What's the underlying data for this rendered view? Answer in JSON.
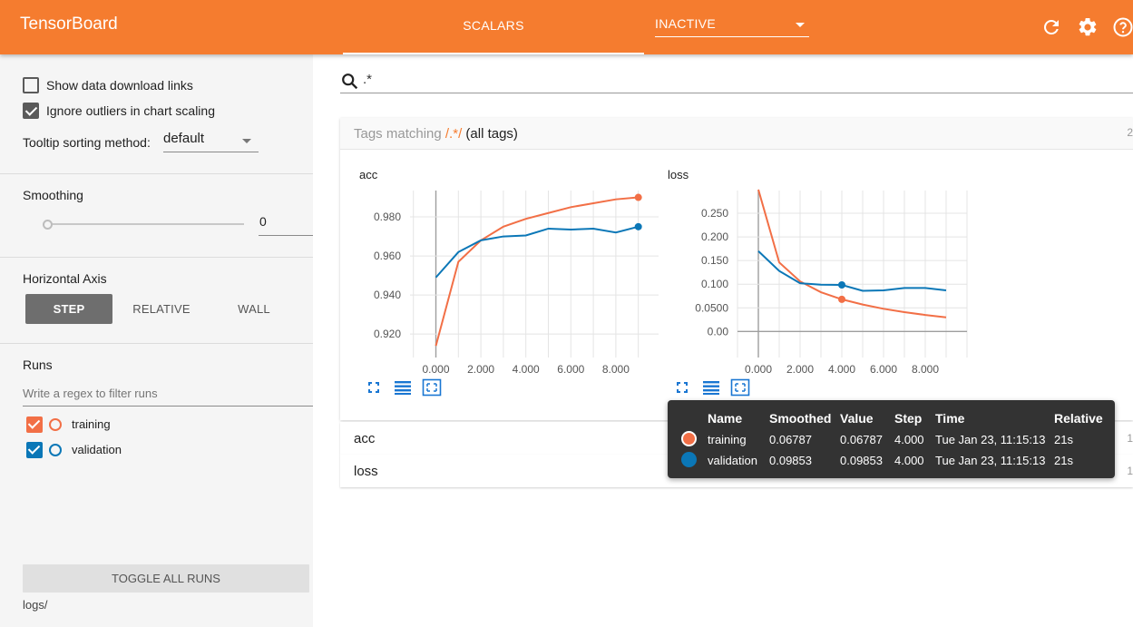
{
  "app": {
    "title": "TensorBoard",
    "active_tab": "SCALARS",
    "inactive_label": "INACTIVE"
  },
  "colors": {
    "topbar": "#f57c2f",
    "training": "#f26f46",
    "validation": "#0b77b7",
    "sidebar_bg": "#f5f5f5"
  },
  "sidebar": {
    "show_download_links": "Show data download links",
    "ignore_outliers": "Ignore outliers in chart scaling",
    "tooltip_sorting_label": "Tooltip sorting method:",
    "tooltip_sorting_value": "default",
    "smoothing_label": "Smoothing",
    "smoothing_value": "0",
    "horizontal_axis_label": "Horizontal Axis",
    "axis_options": [
      "STEP",
      "RELATIVE",
      "WALL"
    ],
    "runs_label": "Runs",
    "runs_filter_placeholder": "Write a regex to filter runs",
    "runs": [
      {
        "name": "training",
        "checked": true
      },
      {
        "name": "validation",
        "checked": true
      }
    ],
    "toggle_all_runs": "TOGGLE ALL RUNS",
    "logdir": "logs/"
  },
  "search": {
    "value": ".*"
  },
  "tags_card": {
    "prefix": "Tags matching ",
    "regex": "/.*/",
    "suffix": " (all tags)",
    "count": "2"
  },
  "collapsed_cards": [
    {
      "label": "acc",
      "count": "1"
    },
    {
      "label": "loss",
      "count": "1"
    }
  ],
  "chart_data": [
    {
      "type": "line",
      "title": "acc",
      "x_ticks": [
        "0.000",
        "2.000",
        "4.000",
        "6.000",
        "8.000"
      ],
      "y_ticks": [
        "0.920",
        "0.940",
        "0.960",
        "0.980"
      ],
      "xlim": [
        -1.15,
        9.9
      ],
      "ylim": [
        0.908,
        0.9935
      ],
      "series": [
        {
          "name": "training",
          "color": "#f26f46",
          "x": [
            0,
            1,
            2,
            3,
            4,
            5,
            6,
            7,
            8,
            9
          ],
          "y": [
            0.914,
            0.957,
            0.968,
            0.975,
            0.979,
            0.982,
            0.985,
            0.987,
            0.989,
            0.99
          ]
        },
        {
          "name": "validation",
          "color": "#0b77b7",
          "x": [
            0,
            1,
            2,
            3,
            4,
            5,
            6,
            7,
            8,
            9
          ],
          "y": [
            0.949,
            0.962,
            0.968,
            0.97,
            0.9705,
            0.974,
            0.9735,
            0.974,
            0.972,
            0.975
          ]
        }
      ]
    },
    {
      "type": "line",
      "title": "loss",
      "x_ticks": [
        "0.000",
        "2.000",
        "4.000",
        "6.000",
        "8.000"
      ],
      "y_ticks": [
        "0.00",
        "0.0500",
        "0.100",
        "0.150",
        "0.200",
        "0.250"
      ],
      "xlim": [
        -1.0,
        10.0
      ],
      "ylim": [
        -0.055,
        0.298
      ],
      "highlight_step": 4,
      "series": [
        {
          "name": "training",
          "color": "#f26f46",
          "x": [
            0,
            1,
            2,
            3,
            4,
            5,
            6,
            7,
            8,
            9
          ],
          "y": [
            0.3,
            0.146,
            0.106,
            0.083,
            0.068,
            0.057,
            0.048,
            0.041,
            0.035,
            0.03
          ]
        },
        {
          "name": "validation",
          "color": "#0b77b7",
          "x": [
            0,
            1,
            2,
            3,
            4,
            5,
            6,
            7,
            8,
            9
          ],
          "y": [
            0.17,
            0.128,
            0.102,
            0.099,
            0.0985,
            0.086,
            0.087,
            0.092,
            0.092,
            0.087
          ]
        }
      ]
    }
  ],
  "tooltip": {
    "headers": [
      "Name",
      "Smoothed",
      "Value",
      "Step",
      "Time",
      "Relative"
    ],
    "rows": [
      {
        "name": "training",
        "smoothed": "0.06787",
        "value": "0.06787",
        "step": "4.000",
        "time": "Tue Jan 23, 11:15:13",
        "relative": "21s"
      },
      {
        "name": "validation",
        "smoothed": "0.09853",
        "value": "0.09853",
        "step": "4.000",
        "time": "Tue Jan 23, 11:15:13",
        "relative": "21s"
      }
    ]
  }
}
